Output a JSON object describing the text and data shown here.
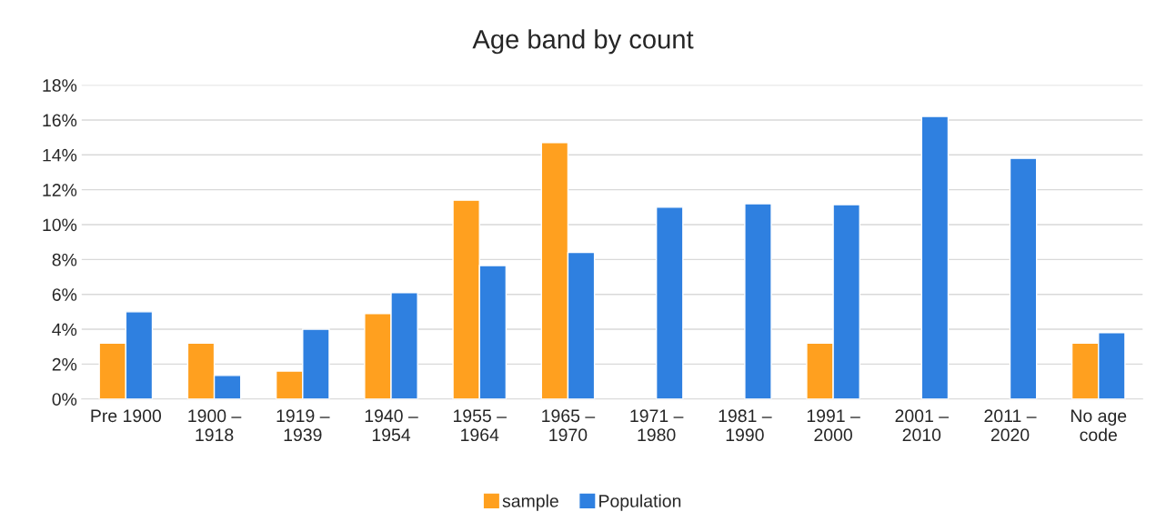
{
  "chart_data": {
    "type": "bar",
    "title": "Age band by count",
    "categories": [
      "Pre 1900",
      "1900 –\n1918",
      "1919 –\n1939",
      "1940 –\n1954",
      "1955 –\n1964",
      "1965 –\n1970",
      "1971 –\n1980",
      "1981 –\n1990",
      "1991 –\n2000",
      "2001 –\n2010",
      "2011 –\n2020",
      "No age\ncode"
    ],
    "series": [
      {
        "name": "sample",
        "color": "#ffa01f",
        "values": [
          3.2,
          3.2,
          1.6,
          4.9,
          11.4,
          14.7,
          null,
          null,
          3.2,
          null,
          null,
          3.2
        ]
      },
      {
        "name": "Population",
        "color": "#2f80e0",
        "values": [
          5.0,
          1.35,
          4.0,
          6.1,
          7.65,
          8.4,
          11.0,
          11.2,
          11.15,
          16.2,
          13.8,
          3.8
        ]
      }
    ],
    "ylim": [
      0,
      18
    ],
    "yticks": [
      {
        "value": 0,
        "label": "0%"
      },
      {
        "value": 2,
        "label": "2%"
      },
      {
        "value": 4,
        "label": "4%"
      },
      {
        "value": 6,
        "label": "6%"
      },
      {
        "value": 8,
        "label": "8%"
      },
      {
        "value": 10,
        "label": "10%"
      },
      {
        "value": 12,
        "label": "12%"
      },
      {
        "value": 14,
        "label": "14%"
      },
      {
        "value": 16,
        "label": "16%"
      },
      {
        "value": 18,
        "label": "18%"
      }
    ],
    "grid": "y",
    "legend": "bottom"
  }
}
